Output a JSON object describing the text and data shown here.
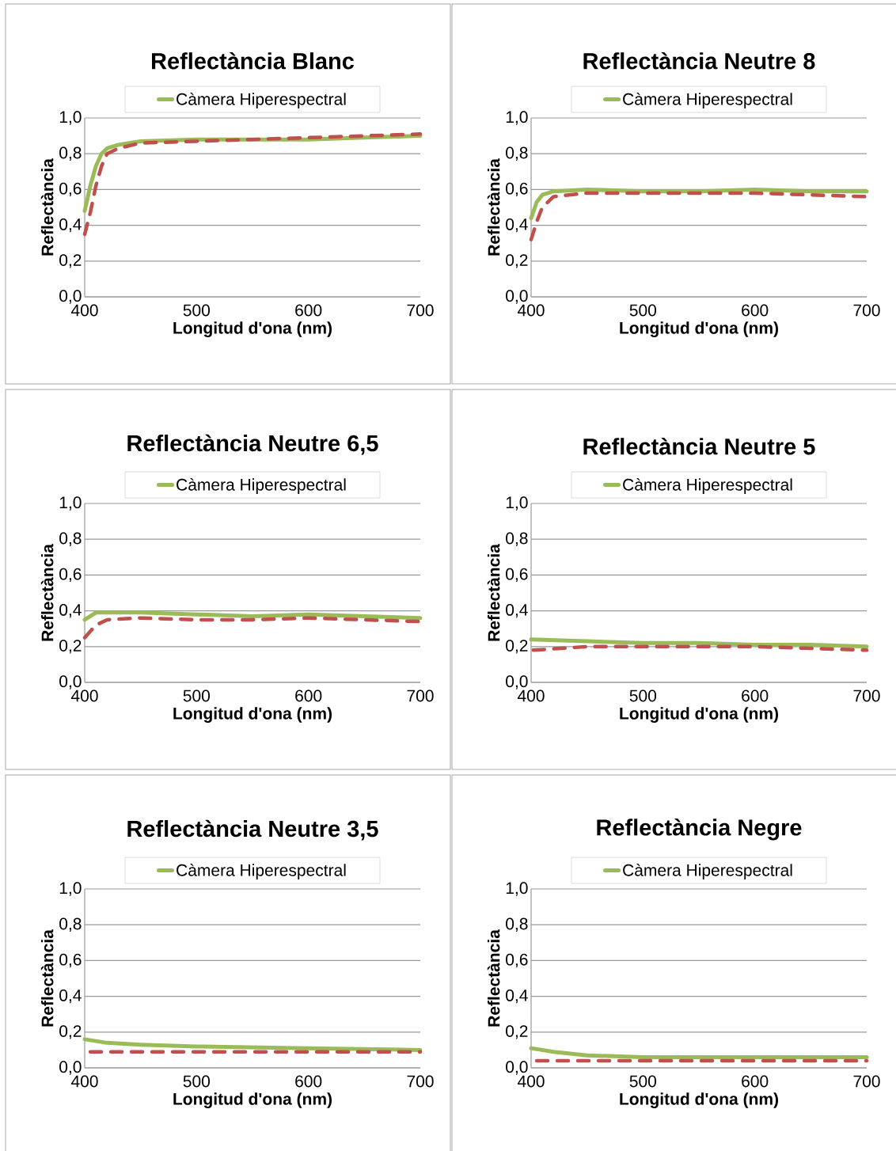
{
  "chart_data": [
    {
      "type": "line",
      "title": "Reflectància Blanc",
      "xlabel": "Longitud d'ona (nm)",
      "ylabel": "Reflectància",
      "xlim": [
        400,
        700
      ],
      "xticks": [
        400,
        500,
        600,
        700
      ],
      "ylim": [
        0,
        1
      ],
      "yticks": [
        {
          "value": 0,
          "label": "0,0"
        },
        {
          "value": 0.2,
          "label": "0,2"
        },
        {
          "value": 0.4,
          "label": "0,4"
        },
        {
          "value": 0.6,
          "label": "0,6"
        },
        {
          "value": 0.8,
          "label": "0,8"
        },
        {
          "value": 1,
          "label": "1,0"
        }
      ],
      "grid": "y",
      "legend": "top",
      "series": [
        {
          "name": "Càmera Hiperespectral",
          "color": "#9bbb59",
          "line_style": "solid",
          "x": [
            400,
            405,
            410,
            415,
            420,
            430,
            450,
            500,
            550,
            600,
            650,
            700
          ],
          "values": [
            0.48,
            0.62,
            0.73,
            0.8,
            0.83,
            0.85,
            0.87,
            0.88,
            0.88,
            0.88,
            0.89,
            0.9
          ]
        },
        {
          "color": "#c0504d",
          "line_style": "dashed",
          "x": [
            400,
            405,
            410,
            415,
            420,
            430,
            450,
            500,
            550,
            600,
            650,
            700
          ],
          "values": [
            0.35,
            0.47,
            0.62,
            0.73,
            0.8,
            0.83,
            0.86,
            0.87,
            0.88,
            0.89,
            0.9,
            0.91
          ]
        }
      ]
    },
    {
      "type": "line",
      "title": "Reflectància Neutre 8",
      "xlabel": "Longitud d'ona (nm)",
      "ylabel": "Reflectància",
      "xlim": [
        400,
        700
      ],
      "xticks": [
        400,
        500,
        600,
        700
      ],
      "ylim": [
        0,
        1
      ],
      "yticks": [
        {
          "value": 0,
          "label": "0,0"
        },
        {
          "value": 0.2,
          "label": "0,2"
        },
        {
          "value": 0.4,
          "label": "0,4"
        },
        {
          "value": 0.6,
          "label": "0,6"
        },
        {
          "value": 0.8,
          "label": "0,8"
        },
        {
          "value": 1,
          "label": "1,0"
        }
      ],
      "grid": "y",
      "legend": "top",
      "series": [
        {
          "name": "Càmera Hiperespectral",
          "color": "#9bbb59",
          "line_style": "solid",
          "x": [
            400,
            405,
            410,
            420,
            450,
            500,
            550,
            600,
            650,
            700
          ],
          "values": [
            0.44,
            0.53,
            0.57,
            0.59,
            0.6,
            0.59,
            0.59,
            0.6,
            0.59,
            0.59
          ]
        },
        {
          "color": "#c0504d",
          "line_style": "dashed",
          "x": [
            400,
            405,
            410,
            420,
            450,
            500,
            600,
            650,
            700
          ],
          "values": [
            0.32,
            0.42,
            0.5,
            0.56,
            0.58,
            0.58,
            0.58,
            0.57,
            0.56
          ]
        }
      ]
    },
    {
      "type": "line",
      "title": "Reflectància Neutre 6,5",
      "xlabel": "Longitud d'ona (nm)",
      "ylabel": "Reflectància",
      "xlim": [
        400,
        700
      ],
      "xticks": [
        400,
        500,
        600,
        700
      ],
      "ylim": [
        0,
        1
      ],
      "yticks": [
        {
          "value": 0,
          "label": "0,0"
        },
        {
          "value": 0.2,
          "label": "0,2"
        },
        {
          "value": 0.4,
          "label": "0,4"
        },
        {
          "value": 0.6,
          "label": "0,6"
        },
        {
          "value": 0.8,
          "label": "0,8"
        },
        {
          "value": 1,
          "label": "1,0"
        }
      ],
      "grid": "y",
      "legend": "top",
      "series": [
        {
          "name": "Càmera Hiperespectral",
          "color": "#9bbb59",
          "line_style": "solid",
          "x": [
            400,
            410,
            450,
            500,
            550,
            600,
            650,
            700
          ],
          "values": [
            0.35,
            0.39,
            0.39,
            0.38,
            0.37,
            0.38,
            0.37,
            0.36
          ]
        },
        {
          "color": "#c0504d",
          "line_style": "dashed",
          "x": [
            400,
            410,
            420,
            450,
            500,
            550,
            600,
            650,
            700
          ],
          "values": [
            0.25,
            0.32,
            0.35,
            0.36,
            0.35,
            0.35,
            0.36,
            0.35,
            0.34
          ]
        }
      ]
    },
    {
      "type": "line",
      "title": "Reflectància Neutre 5",
      "xlabel": "Longitud d'ona (nm)",
      "ylabel": "Reflectància",
      "xlim": [
        400,
        700
      ],
      "xticks": [
        400,
        500,
        600,
        700
      ],
      "ylim": [
        0,
        1
      ],
      "yticks": [
        {
          "value": 0,
          "label": "0,0"
        },
        {
          "value": 0.2,
          "label": "0,2"
        },
        {
          "value": 0.4,
          "label": "0,4"
        },
        {
          "value": 0.6,
          "label": "0,6"
        },
        {
          "value": 0.8,
          "label": "0,8"
        },
        {
          "value": 1,
          "label": "1,0"
        }
      ],
      "grid": "y",
      "legend": "top",
      "series": [
        {
          "name": "Càmera Hiperespectral",
          "color": "#9bbb59",
          "line_style": "solid",
          "x": [
            400,
            450,
            500,
            550,
            600,
            650,
            700
          ],
          "values": [
            0.24,
            0.23,
            0.22,
            0.22,
            0.21,
            0.21,
            0.2
          ]
        },
        {
          "color": "#c0504d",
          "line_style": "dashed",
          "x": [
            402,
            450,
            500,
            600,
            650,
            700
          ],
          "values": [
            0.18,
            0.2,
            0.2,
            0.2,
            0.19,
            0.18
          ]
        }
      ]
    },
    {
      "type": "line",
      "title": "Reflectància Neutre 3,5",
      "xlabel": "Longitud d'ona (nm)",
      "ylabel": "Reflectància",
      "xlim": [
        400,
        700
      ],
      "xticks": [
        400,
        500,
        600,
        700
      ],
      "ylim": [
        0,
        1
      ],
      "yticks": [
        {
          "value": 0,
          "label": "0,0"
        },
        {
          "value": 0.2,
          "label": "0,2"
        },
        {
          "value": 0.4,
          "label": "0,4"
        },
        {
          "value": 0.6,
          "label": "0,6"
        },
        {
          "value": 0.8,
          "label": "0,8"
        },
        {
          "value": 1,
          "label": "1,0"
        }
      ],
      "grid": "y",
      "legend": "top",
      "series": [
        {
          "name": "Càmera Hiperespectral",
          "color": "#9bbb59",
          "line_style": "solid",
          "x": [
            400,
            420,
            450,
            500,
            600,
            700
          ],
          "values": [
            0.16,
            0.14,
            0.13,
            0.12,
            0.11,
            0.1
          ]
        },
        {
          "color": "#c0504d",
          "line_style": "dashed",
          "x": [
            405,
            450,
            500,
            600,
            700
          ],
          "values": [
            0.09,
            0.09,
            0.09,
            0.09,
            0.09
          ]
        }
      ]
    },
    {
      "type": "line",
      "title": "Reflectància Negre",
      "xlabel": "Longitud d'ona (nm)",
      "ylabel": "Reflectància",
      "xlim": [
        400,
        700
      ],
      "xticks": [
        400,
        500,
        600,
        700
      ],
      "ylim": [
        0,
        1
      ],
      "yticks": [
        {
          "value": 0,
          "label": "0,0"
        },
        {
          "value": 0.2,
          "label": "0,2"
        },
        {
          "value": 0.4,
          "label": "0,4"
        },
        {
          "value": 0.6,
          "label": "0,6"
        },
        {
          "value": 0.8,
          "label": "0,8"
        },
        {
          "value": 1,
          "label": "1,0"
        }
      ],
      "grid": "y",
      "legend": "top",
      "series": [
        {
          "name": "Càmera Hiperespectral",
          "color": "#9bbb59",
          "line_style": "solid",
          "x": [
            400,
            420,
            450,
            500,
            550,
            600,
            700
          ],
          "values": [
            0.11,
            0.09,
            0.07,
            0.06,
            0.06,
            0.06,
            0.06
          ]
        },
        {
          "color": "#c0504d",
          "line_style": "dashed",
          "x": [
            405,
            450,
            500,
            600,
            700
          ],
          "values": [
            0.04,
            0.04,
            0.04,
            0.04,
            0.04
          ]
        }
      ]
    }
  ]
}
